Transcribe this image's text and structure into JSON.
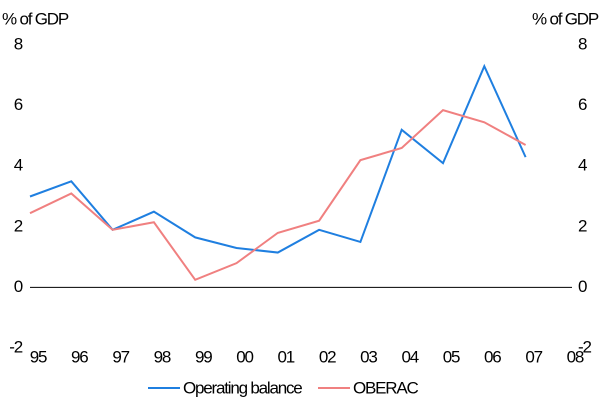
{
  "chart_data": {
    "type": "line",
    "y_label": "% of GDP",
    "y2_label": "% of GDP",
    "categories": [
      "95",
      "96",
      "97",
      "98",
      "99",
      "00",
      "01",
      "02",
      "03",
      "04",
      "05",
      "06",
      "07",
      "08"
    ],
    "series": [
      {
        "name": "Operating balance",
        "color": "#1f7fe0",
        "values": [
          3.0,
          3.5,
          1.9,
          2.5,
          1.65,
          1.3,
          1.15,
          1.9,
          1.5,
          5.2,
          4.1,
          7.3,
          4.3,
          null
        ]
      },
      {
        "name": "OBERAC",
        "color": "#f08080",
        "values": [
          2.45,
          3.1,
          1.9,
          2.15,
          0.25,
          0.8,
          1.8,
          2.2,
          4.2,
          4.6,
          5.85,
          5.45,
          4.7,
          null
        ]
      }
    ],
    "ylim": [
      -2,
      8
    ],
    "yticks": [
      -2,
      0,
      2,
      4,
      6,
      8
    ],
    "y2lim": [
      -2,
      8
    ],
    "y2ticks": [
      -2,
      0,
      2,
      4,
      6,
      8
    ],
    "zero_line": true,
    "legend": "bottom"
  }
}
